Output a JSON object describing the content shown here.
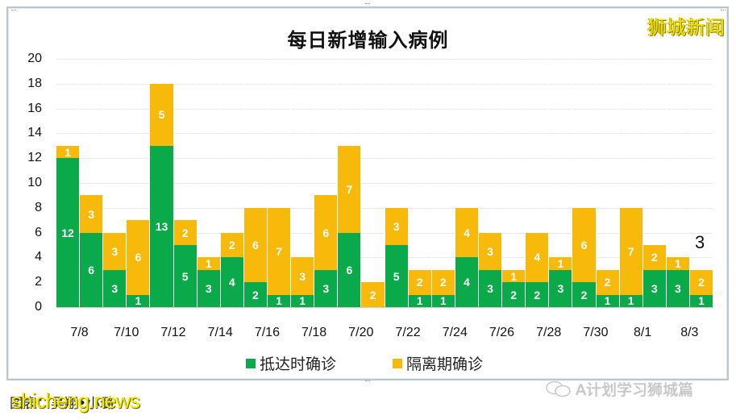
{
  "chart_data": {
    "type": "bar",
    "stacked": true,
    "title": "每日新增输入病例",
    "xlabel": "",
    "ylabel": "",
    "ylim": [
      0,
      20
    ],
    "yticks": [
      0,
      2,
      4,
      6,
      8,
      10,
      12,
      14,
      16,
      18,
      20
    ],
    "grid": true,
    "legend_position": "bottom",
    "categories": [
      "7/8",
      "7/9",
      "7/10",
      "7/11",
      "7/12",
      "7/13",
      "7/14",
      "7/15",
      "7/16",
      "7/17",
      "7/18",
      "7/19",
      "7/20",
      "7/21",
      "7/22",
      "7/23",
      "7/24",
      "7/25",
      "7/26",
      "7/27",
      "7/28",
      "7/29",
      "7/30",
      "7/31",
      "8/1",
      "8/2",
      "8/3",
      "8/4"
    ],
    "xtick_labels": [
      "7/8",
      "7/10",
      "7/12",
      "7/14",
      "7/16",
      "7/18",
      "7/20",
      "7/22",
      "7/24",
      "7/26",
      "7/28",
      "7/30",
      "8/1",
      "8/3"
    ],
    "series": [
      {
        "name": "抵达时确诊",
        "color": "#0aa94a",
        "values": [
          12,
          6,
          3,
          1,
          13,
          5,
          3,
          4,
          2,
          1,
          1,
          3,
          6,
          0,
          5,
          1,
          1,
          4,
          3,
          2,
          2,
          3,
          2,
          1,
          1,
          3,
          3,
          1
        ]
      },
      {
        "name": "隔离期确诊",
        "color": "#f7b90a",
        "values": [
          1,
          3,
          3,
          6,
          5,
          2,
          1,
          2,
          6,
          7,
          3,
          6,
          7,
          2,
          3,
          2,
          2,
          4,
          3,
          1,
          4,
          1,
          6,
          2,
          7,
          2,
          1,
          2
        ]
      }
    ],
    "annotations": [
      {
        "text": "3",
        "category": "8/4",
        "note": "total label above last bar"
      }
    ]
  },
  "header": {
    "title": "每日新增输入病例",
    "brand_watermark": "狮城新闻"
  },
  "legend": [
    {
      "label": "抵达时确诊",
      "color": "#0aa94a"
    },
    {
      "label": "隔离期确诊",
      "color": "#f7b90a"
    }
  ],
  "footer": {
    "caption": "图表：吴翔•小璐",
    "watermark_left": "shicheng.news",
    "watermark_right": "A计划学习狮城篇"
  }
}
